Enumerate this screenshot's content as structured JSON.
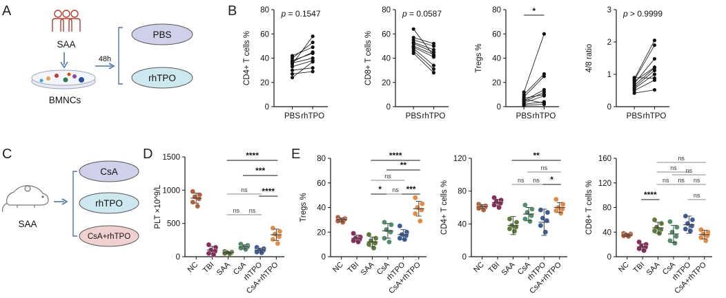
{
  "panel_labels": [
    "A",
    "B",
    "C",
    "D",
    "E"
  ],
  "schematic_A": {
    "source_label": "SAA",
    "cells_label": "BMNCs",
    "time_label": "48h",
    "groups": [
      "PBS",
      "rhTPO"
    ]
  },
  "schematic_C": {
    "source_label": "SAA",
    "groups": [
      "CsA",
      "rhTPO",
      "CsA+rhTPO"
    ]
  },
  "colors": {
    "group_fill": "#cfd0ea",
    "group_fill_alt": "#cde8ee",
    "group_fill_combo": "#f1d1d0",
    "NC": "#b5603a",
    "TBI": "#8c2a5c",
    "SAA": "#5c7a38",
    "CsA": "#4f8f6a",
    "rhTPO": "#3b5d98",
    "CsA+rhTPO": "#e48b43"
  },
  "chart_data": [
    {
      "type": "scatter",
      "subtype": "paired",
      "panel": "B",
      "categories": [
        "PBS",
        "rhTPO"
      ],
      "ylabel": "CD4+ T cells %",
      "ylim": [
        0,
        80
      ],
      "yticks": [
        "0",
        "20",
        "40",
        "60",
        "80"
      ],
      "annotation": "p = 0.1547",
      "pairs": [
        [
          24,
          37
        ],
        [
          27,
          29
        ],
        [
          30,
          32
        ],
        [
          33,
          38
        ],
        [
          36,
          40
        ],
        [
          37,
          45
        ],
        [
          38,
          44
        ],
        [
          40,
          53
        ],
        [
          42,
          49
        ],
        [
          35,
          58
        ]
      ]
    },
    {
      "type": "scatter",
      "subtype": "paired",
      "panel": "B",
      "categories": [
        "PBS",
        "rhTPO"
      ],
      "ylabel": "CD8+ T cells %",
      "ylim": [
        0,
        80
      ],
      "yticks": [
        "0",
        "20",
        "40",
        "60",
        "80"
      ],
      "annotation": "p = 0.0587",
      "pairs": [
        [
          44,
          28
        ],
        [
          46,
          31
        ],
        [
          48,
          34
        ],
        [
          49,
          41
        ],
        [
          50,
          43
        ],
        [
          52,
          45
        ],
        [
          53,
          47
        ],
        [
          55,
          50
        ],
        [
          57,
          52
        ],
        [
          64,
          42
        ]
      ]
    },
    {
      "type": "scatter",
      "subtype": "paired",
      "panel": "B",
      "categories": [
        "PBS",
        "rhTPO"
      ],
      "ylabel": "Tregs %",
      "ylim": [
        0,
        80
      ],
      "yticks": [
        "0",
        "20",
        "40",
        "60",
        "80"
      ],
      "annotation": "*",
      "pairs": [
        [
          1,
          2
        ],
        [
          2,
          4
        ],
        [
          3,
          9
        ],
        [
          4,
          12
        ],
        [
          5,
          14
        ],
        [
          6,
          3
        ],
        [
          7,
          10
        ],
        [
          8,
          25
        ],
        [
          10,
          27
        ],
        [
          12,
          60
        ]
      ]
    },
    {
      "type": "scatter",
      "subtype": "paired",
      "panel": "B",
      "categories": [
        "PBS",
        "rhTPO"
      ],
      "ylabel": "4/8 ratio",
      "ylim": [
        0,
        3
      ],
      "yticks": [
        "0",
        "1",
        "2",
        "3"
      ],
      "annotation": "p > 0.9999",
      "pairs": [
        [
          0.42,
          0.52
        ],
        [
          0.5,
          0.82
        ],
        [
          0.56,
          1.0
        ],
        [
          0.6,
          1.12
        ],
        [
          0.66,
          1.2
        ],
        [
          0.72,
          1.48
        ],
        [
          0.78,
          1.22
        ],
        [
          0.82,
          1.9
        ],
        [
          0.86,
          2.05
        ],
        [
          0.9,
          0.88
        ]
      ]
    },
    {
      "type": "scatter",
      "subtype": "dot-plot",
      "panel": "D",
      "categories": [
        "NC",
        "TBI",
        "SAA",
        "CsA",
        "rhTPO",
        "CsA+rhTPO"
      ],
      "ylabel": "PLT ×10^9/L",
      "ylim": [
        0,
        1500
      ],
      "yticks": [
        "0",
        "500",
        "1000",
        "1500"
      ],
      "series": [
        {
          "name": "NC",
          "values": [
            980,
            930,
            900,
            870,
            820,
            760
          ],
          "mean": 880,
          "sd": 75
        },
        {
          "name": "TBI",
          "values": [
            180,
            140,
            100,
            80,
            50,
            30
          ],
          "mean": 100,
          "sd": 55
        },
        {
          "name": "SAA",
          "values": [
            80,
            70,
            65,
            55,
            50,
            45
          ],
          "mean": 62,
          "sd": 13
        },
        {
          "name": "CsA",
          "values": [
            190,
            170,
            150,
            140,
            130,
            110
          ],
          "mean": 148,
          "sd": 30
        },
        {
          "name": "rhTPO",
          "values": [
            140,
            120,
            100,
            90,
            70,
            60
          ],
          "mean": 97,
          "sd": 30
        },
        {
          "name": "CsA+rhTPO",
          "values": [
            430,
            380,
            340,
            300,
            260,
            200
          ],
          "mean": 330,
          "sd": 85
        }
      ],
      "significance": [
        {
          "from": 2,
          "to": 5,
          "label": "****"
        },
        {
          "from": 3,
          "to": 5,
          "label": "***"
        },
        {
          "from": 2,
          "to": 4,
          "label": "ns"
        },
        {
          "from": 4,
          "to": 5,
          "label": "****"
        },
        {
          "from": 2,
          "to": 3,
          "label": "ns"
        },
        {
          "from": 3,
          "to": 4,
          "label": "ns"
        }
      ]
    },
    {
      "type": "scatter",
      "subtype": "dot-plot",
      "panel": "E",
      "categories": [
        "NC",
        "TBI",
        "SAA",
        "CsA",
        "rhTPO",
        "CsA+rhTPO"
      ],
      "ylabel": "Tregs %",
      "ylim": [
        0,
        80
      ],
      "yticks": [
        "0",
        "20",
        "40",
        "60",
        "80"
      ],
      "series": [
        {
          "name": "NC",
          "values": [
            32,
            31,
            30,
            30,
            29,
            28
          ],
          "mean": 30,
          "sd": 1.5
        },
        {
          "name": "TBI",
          "values": [
            19,
            16,
            15,
            14,
            13,
            12
          ],
          "mean": 15,
          "sd": 2.5
        },
        {
          "name": "SAA",
          "values": [
            18,
            15,
            13,
            11,
            10,
            7
          ],
          "mean": 12,
          "sd": 4
        },
        {
          "name": "CsA",
          "values": [
            28,
            26,
            22,
            20,
            15,
            12
          ],
          "mean": 21,
          "sd": 6
        },
        {
          "name": "rhTPO",
          "values": [
            25,
            20,
            18,
            17,
            15,
            14
          ],
          "mean": 18,
          "sd": 4
        },
        {
          "name": "CsA+rhTPO",
          "values": [
            48,
            43,
            40,
            38,
            35,
            29
          ],
          "mean": 39,
          "sd": 6
        }
      ],
      "significance": [
        {
          "from": 2,
          "to": 5,
          "label": "****"
        },
        {
          "from": 3,
          "to": 5,
          "label": "**"
        },
        {
          "from": 2,
          "to": 4,
          "label": "ns"
        },
        {
          "from": 2,
          "to": 3,
          "label": "*"
        },
        {
          "from": 3,
          "to": 4,
          "label": "ns"
        },
        {
          "from": 4,
          "to": 5,
          "label": "***"
        }
      ]
    },
    {
      "type": "scatter",
      "subtype": "dot-plot",
      "panel": "E",
      "categories": [
        "NC",
        "TBI",
        "SAA",
        "CsA",
        "rhTPO",
        "CsA+rhTPO"
      ],
      "ylabel": "CD4+ T cells %",
      "ylim": [
        0,
        120
      ],
      "yticks": [
        "0",
        "40",
        "80",
        "120"
      ],
      "series": [
        {
          "name": "NC",
          "values": [
            64,
            62,
            61,
            60,
            59,
            57
          ],
          "mean": 61,
          "sd": 2.5
        },
        {
          "name": "TBI",
          "values": [
            72,
            69,
            67,
            65,
            63,
            60
          ],
          "mean": 66,
          "sd": 4
        },
        {
          "name": "SAA",
          "values": [
            46,
            42,
            38,
            36,
            34,
            31
          ],
          "mean": 38,
          "sd": 11
        },
        {
          "name": "CsA",
          "values": [
            63,
            58,
            54,
            50,
            46,
            43
          ],
          "mean": 52,
          "sd": 8
        },
        {
          "name": "rhTPO",
          "values": [
            57,
            54,
            47,
            44,
            38,
            30
          ],
          "mean": 42,
          "sd": 16
        },
        {
          "name": "CsA+rhTPO",
          "values": [
            70,
            64,
            60,
            58,
            56,
            53
          ],
          "mean": 60,
          "sd": 6
        }
      ],
      "significance": [
        {
          "from": 2,
          "to": 5,
          "label": "**"
        },
        {
          "from": 3,
          "to": 5,
          "label": "ns"
        },
        {
          "from": 2,
          "to": 3,
          "label": "ns"
        },
        {
          "from": 3,
          "to": 4,
          "label": "ns"
        },
        {
          "from": 4,
          "to": 5,
          "label": "*"
        }
      ]
    },
    {
      "type": "scatter",
      "subtype": "dot-plot",
      "panel": "E",
      "categories": [
        "NC",
        "TBI",
        "SAA",
        "CsA",
        "rhTPO",
        "CsA+rhTPO"
      ],
      "ylabel": "CD8+ T cells %",
      "ylim": [
        0,
        160
      ],
      "yticks": [
        "0",
        "40",
        "80",
        "120",
        "160"
      ],
      "series": [
        {
          "name": "NC",
          "values": [
            38,
            37,
            36,
            35,
            34,
            33
          ],
          "mean": 35,
          "sd": 2
        },
        {
          "name": "TBI",
          "values": [
            24,
            20,
            17,
            15,
            13,
            10
          ],
          "mean": 16,
          "sd": 5
        },
        {
          "name": "SAA",
          "values": [
            60,
            54,
            48,
            44,
            42,
            38
          ],
          "mean": 47,
          "sd": 9
        },
        {
          "name": "CsA",
          "values": [
            57,
            48,
            40,
            33,
            26,
            22
          ],
          "mean": 37,
          "sd": 14
        },
        {
          "name": "rhTPO",
          "values": [
            66,
            60,
            54,
            50,
            45,
            42
          ],
          "mean": 52,
          "sd": 14
        },
        {
          "name": "CsA+rhTPO",
          "values": [
            44,
            40,
            37,
            34,
            31,
            26
          ],
          "mean": 36,
          "sd": 7
        }
      ],
      "significance": [
        {
          "from": 2,
          "to": 5,
          "label": "ns"
        },
        {
          "from": 2,
          "to": 4,
          "label": "ns"
        },
        {
          "from": 3,
          "to": 5,
          "label": "ns"
        },
        {
          "from": 2,
          "to": 3,
          "label": "ns"
        },
        {
          "from": 3,
          "to": 4,
          "label": "ns"
        },
        {
          "from": 4,
          "to": 5,
          "label": "ns"
        },
        {
          "from": 1,
          "to": 2,
          "label": "****"
        },
        {
          "from": 4,
          "to": 5,
          "label": "ns"
        }
      ]
    }
  ]
}
